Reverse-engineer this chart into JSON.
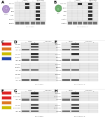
{
  "background": "#ffffff",
  "wb_cell_color": "#e8e8e8",
  "wb_cell_edge": "#cccccc",
  "band_dark": "#2a2a2a",
  "band_mid": "#555555",
  "band_light": "#999999",
  "label_color": "#333333",
  "header_color": "#555555",
  "icon_nucleus": "#b090c8",
  "icon_nucleus_edge": "#8060aa",
  "icon_mito": "#60a860",
  "icon_mito_edge": "#408040",
  "icon_bar_red1": "#dd2222",
  "icon_bar_red2": "#dd2222",
  "icon_bar_orange": "#dd7722",
  "icon_bar_yellow": "#ccbb00",
  "icon_bar_blue": "#2244aa",
  "panel_a_rows": [
    {
      "label": "p-BNIP3L",
      "bands": [
        2,
        4
      ]
    },
    {
      "label": "BNIP3L",
      "bands": [
        2,
        4
      ]
    },
    {
      "label": "MFN1",
      "bands": [
        4
      ]
    },
    {
      "label": "CPIN1",
      "bands": [
        4
      ]
    },
    {
      "label": "Ubiquitin",
      "bands": [
        4
      ]
    },
    {
      "label": "Ubiquitin",
      "bands": [
        0,
        1,
        2,
        3,
        4,
        5
      ]
    }
  ],
  "panel_b_rows": [
    {
      "label": "CPIN1-GFP",
      "bands": [
        2,
        4
      ]
    },
    {
      "label": "BNIP3L",
      "bands": [
        4
      ]
    },
    {
      "label": "MFN1",
      "bands": [
        4
      ]
    },
    {
      "label": "CPIN1",
      "bands": [
        4
      ]
    },
    {
      "label": "Ubiquitin",
      "bands": [
        4
      ]
    },
    {
      "label": "Ubiquitin",
      "bands": [
        0,
        1,
        2,
        3,
        4,
        5
      ]
    }
  ],
  "panel_d_groups": [
    {
      "rows": [
        {
          "label": "GFP-VPS4",
          "bands_2col": [
            1
          ],
          "intensity": 0.85
        },
        {
          "label": "Ubiquitin",
          "bands_2col": [
            1
          ],
          "intensity": 0.7
        },
        {
          "label": "Input: BMI",
          "bands_2col": [
            0,
            1
          ],
          "intensity": 0.55
        }
      ]
    },
    {
      "rows": [
        {
          "label": "GFP-VPS4",
          "bands_2col": [
            1
          ],
          "intensity": 0.8
        },
        {
          "label": "Ubiquitin",
          "bands_2col": [
            1
          ],
          "intensity": 0.65
        },
        {
          "label": "Input: BMI",
          "bands_2col": [
            0,
            1
          ],
          "intensity": 0.55
        }
      ]
    },
    {
      "rows": [
        {
          "label": "GFP-VPS4",
          "bands_2col": [],
          "intensity": 0.3
        },
        {
          "label": "Ubiquitin",
          "bands_2col": [],
          "intensity": 0.3
        },
        {
          "label": "Input: BMI",
          "bands_2col": [
            0,
            1
          ],
          "intensity": 0.55
        }
      ]
    },
    {
      "rows": [
        {
          "label": "GFP-VPS4",
          "bands_2col": [],
          "intensity": 0.3
        },
        {
          "label": "Ubiquitin",
          "bands_2col": [],
          "intensity": 0.3
        },
        {
          "label": "Input: BMI",
          "bands_2col": [
            0,
            1
          ],
          "intensity": 0.55
        }
      ]
    }
  ],
  "panel_e_groups": [
    {
      "rows": [
        {
          "label": "CPIN1-GFP",
          "bands_2col": [
            1
          ],
          "intensity": 0.85
        },
        {
          "label": "Ubiquitin",
          "bands_2col": [
            1
          ],
          "intensity": 0.7
        },
        {
          "label": "Input: BMI",
          "bands_2col": [
            0,
            1
          ],
          "intensity": 0.55
        }
      ]
    },
    {
      "rows": [
        {
          "label": "CPIN1-GFP",
          "bands_2col": [
            1
          ],
          "intensity": 0.8
        },
        {
          "label": "Ubiquitin",
          "bands_2col": [],
          "intensity": 0.3
        },
        {
          "label": "Input: BMI",
          "bands_2col": [
            0,
            1
          ],
          "intensity": 0.55
        }
      ]
    },
    {
      "rows": [
        {
          "label": "CPIN1-GFP",
          "bands_2col": [],
          "intensity": 0.3
        },
        {
          "label": "Ubiquitin",
          "bands_2col": [],
          "intensity": 0.3
        },
        {
          "label": "Input: BMI",
          "bands_2col": [
            0,
            1
          ],
          "intensity": 0.55
        }
      ]
    },
    {
      "rows": [
        {
          "label": "CPIN1-GFP",
          "bands_2col": [],
          "intensity": 0.3
        },
        {
          "label": "Ubiquitin",
          "bands_2col": [],
          "intensity": 0.3
        },
        {
          "label": "Input: BMI",
          "bands_2col": [
            0,
            1
          ],
          "intensity": 0.55
        }
      ]
    }
  ],
  "panel_g_groups": [
    {
      "rows": [
        {
          "label": "GFP-VPS4",
          "bands_2col": [
            1
          ],
          "intensity": 0.85
        },
        {
          "label": "mCherry-DMT",
          "bands_2col": [
            1
          ],
          "intensity": 0.8
        },
        {
          "label": "Input: BMI",
          "bands_2col": [
            0,
            1
          ],
          "intensity": 0.55
        }
      ]
    },
    {
      "rows": [
        {
          "label": "GFP-VPS4",
          "bands_2col": [
            1
          ],
          "intensity": 0.7
        },
        {
          "label": "mCherry-DMT",
          "bands_2col": [
            1
          ],
          "intensity": 0.75
        },
        {
          "label": "Input: BMI",
          "bands_2col": [
            0,
            1
          ],
          "intensity": 0.55
        }
      ]
    }
  ],
  "panel_h_groups": [
    {
      "rows": [
        {
          "label": "CPIN1-GFP",
          "bands_2col": [
            1
          ],
          "intensity": 0.85
        },
        {
          "label": "mCherry-DMT",
          "bands_2col": [
            1
          ],
          "intensity": 0.8
        },
        {
          "label": "Input: BMI",
          "bands_2col": [
            0,
            1
          ],
          "intensity": 0.55
        }
      ]
    },
    {
      "rows": [
        {
          "label": "CPIN1-GFP",
          "bands_2col": [
            1
          ],
          "intensity": 0.7
        },
        {
          "label": "mCherry-DMT",
          "bands_2col": [
            1
          ],
          "intensity": 0.75
        },
        {
          "label": "Input: BMI",
          "bands_2col": [
            0,
            1
          ],
          "intensity": 0.55
        }
      ]
    }
  ]
}
